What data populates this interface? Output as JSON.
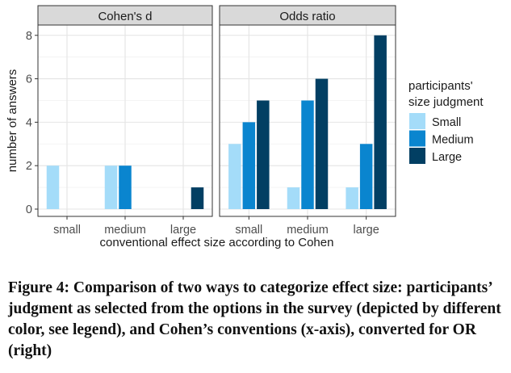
{
  "chart_data": {
    "type": "bar",
    "ylabel": "number of answers",
    "xlabel": "conventional effect size according to Cohen",
    "ylim": [
      0,
      8.4
    ],
    "yticks": [
      0,
      2,
      4,
      6,
      8
    ],
    "categories": [
      "small",
      "medium",
      "large"
    ],
    "grid": true,
    "legend": {
      "title": [
        "participants'",
        "size judgment"
      ],
      "placement": "right",
      "entries": [
        "Small",
        "Medium",
        "Large"
      ]
    },
    "series_colors": [
      "#a4dcf9",
      "#0a85cf",
      "#023f63"
    ],
    "panels": [
      {
        "title": "Cohen's d",
        "series": [
          {
            "name": "Small",
            "values": [
              2,
              2,
              0
            ]
          },
          {
            "name": "Medium",
            "values": [
              0,
              2,
              0
            ]
          },
          {
            "name": "Large",
            "values": [
              0,
              0,
              1
            ]
          }
        ]
      },
      {
        "title": "Odds ratio",
        "series": [
          {
            "name": "Small",
            "values": [
              3,
              1,
              1
            ]
          },
          {
            "name": "Medium",
            "values": [
              4,
              5,
              3
            ]
          },
          {
            "name": "Large",
            "values": [
              5,
              6,
              8
            ]
          }
        ]
      }
    ]
  },
  "caption": "Figure 4: Comparison of two ways to categorize effect size: participants’ judgment as selected from the options in the survey (depicted by different color, see legend), and Cohen’s conventions (x-axis), converted for OR (right)"
}
